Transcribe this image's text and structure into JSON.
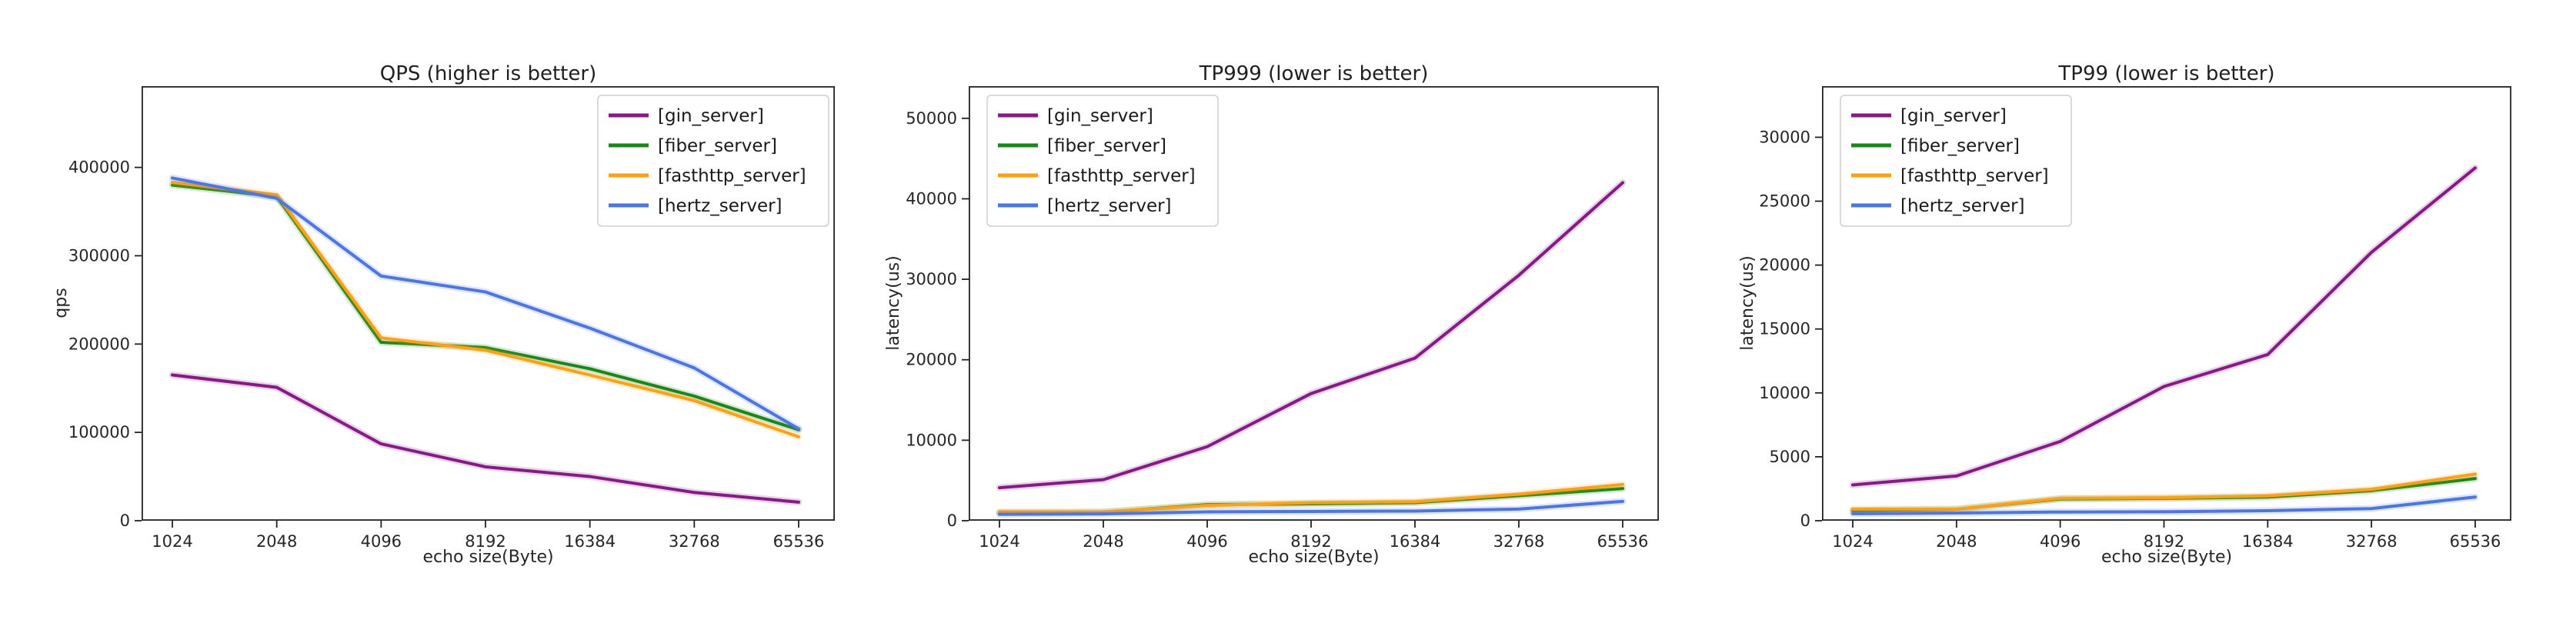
{
  "page": {
    "background": "#ffffff"
  },
  "chart_data": [
    {
      "type": "line",
      "title": "QPS (higher is better)",
      "xlabel": "echo size(Byte)",
      "ylabel": "qps",
      "categories": [
        "1024",
        "2048",
        "4096",
        "8192",
        "16384",
        "32768",
        "65536"
      ],
      "ylim": [
        0,
        492000
      ],
      "yticks": [
        0,
        100000,
        200000,
        300000,
        400000
      ],
      "grid": false,
      "legend_position": "upper-right",
      "series": [
        {
          "name": "[gin_server]",
          "color": "#861b86",
          "values": [
            165000,
            151000,
            87000,
            61000,
            50000,
            32000,
            21000
          ]
        },
        {
          "name": "[fiber_server]",
          "color": "#1a871a",
          "values": [
            380000,
            367000,
            202000,
            196000,
            172000,
            141000,
            103000
          ]
        },
        {
          "name": "[fasthttp_server]",
          "color": "#ffa019",
          "values": [
            383000,
            369000,
            207000,
            193000,
            165000,
            136000,
            95000
          ]
        },
        {
          "name": "[hertz_server]",
          "color": "#4e76e0",
          "values": [
            388000,
            365000,
            277000,
            259000,
            218000,
            173000,
            104000
          ]
        }
      ]
    },
    {
      "type": "line",
      "title": "TP999 (lower is better)",
      "xlabel": "echo size(Byte)",
      "ylabel": "latency(us)",
      "categories": [
        "1024",
        "2048",
        "4096",
        "8192",
        "16384",
        "32768",
        "65536"
      ],
      "ylim": [
        0,
        54000
      ],
      "yticks": [
        0,
        10000,
        20000,
        30000,
        40000,
        50000
      ],
      "grid": false,
      "legend_position": "upper-left",
      "series": [
        {
          "name": "[gin_server]",
          "color": "#861b86",
          "values": [
            4100,
            5100,
            9200,
            15800,
            20200,
            30500,
            42000
          ]
        },
        {
          "name": "[fiber_server]",
          "color": "#1a871a",
          "values": [
            1000,
            1050,
            2000,
            2100,
            2250,
            3100,
            4000
          ]
        },
        {
          "name": "[fasthttp_server]",
          "color": "#ffa019",
          "values": [
            1100,
            1100,
            1900,
            2250,
            2350,
            3300,
            4500
          ]
        },
        {
          "name": "[hertz_server]",
          "color": "#4e76e0",
          "values": [
            800,
            850,
            1100,
            1150,
            1200,
            1450,
            2400
          ]
        }
      ]
    },
    {
      "type": "line",
      "title": "TP99 (lower is better)",
      "xlabel": "echo size(Byte)",
      "ylabel": "latency(us)",
      "categories": [
        "1024",
        "2048",
        "4096",
        "8192",
        "16384",
        "32768",
        "65536"
      ],
      "ylim": [
        0,
        34000
      ],
      "yticks": [
        0,
        5000,
        10000,
        15000,
        20000,
        25000,
        30000
      ],
      "grid": false,
      "legend_position": "upper-left",
      "series": [
        {
          "name": "[gin_server]",
          "color": "#861b86",
          "values": [
            2800,
            3500,
            6200,
            10500,
            13000,
            21000,
            27600
          ]
        },
        {
          "name": "[fiber_server]",
          "color": "#1a871a",
          "values": [
            800,
            900,
            1700,
            1750,
            1850,
            2350,
            3300
          ]
        },
        {
          "name": "[fasthttp_server]",
          "color": "#ffa019",
          "values": [
            900,
            900,
            1750,
            1800,
            1950,
            2450,
            3650
          ]
        },
        {
          "name": "[hertz_server]",
          "color": "#4e76e0",
          "values": [
            550,
            600,
            680,
            700,
            780,
            950,
            1850
          ]
        }
      ]
    }
  ]
}
